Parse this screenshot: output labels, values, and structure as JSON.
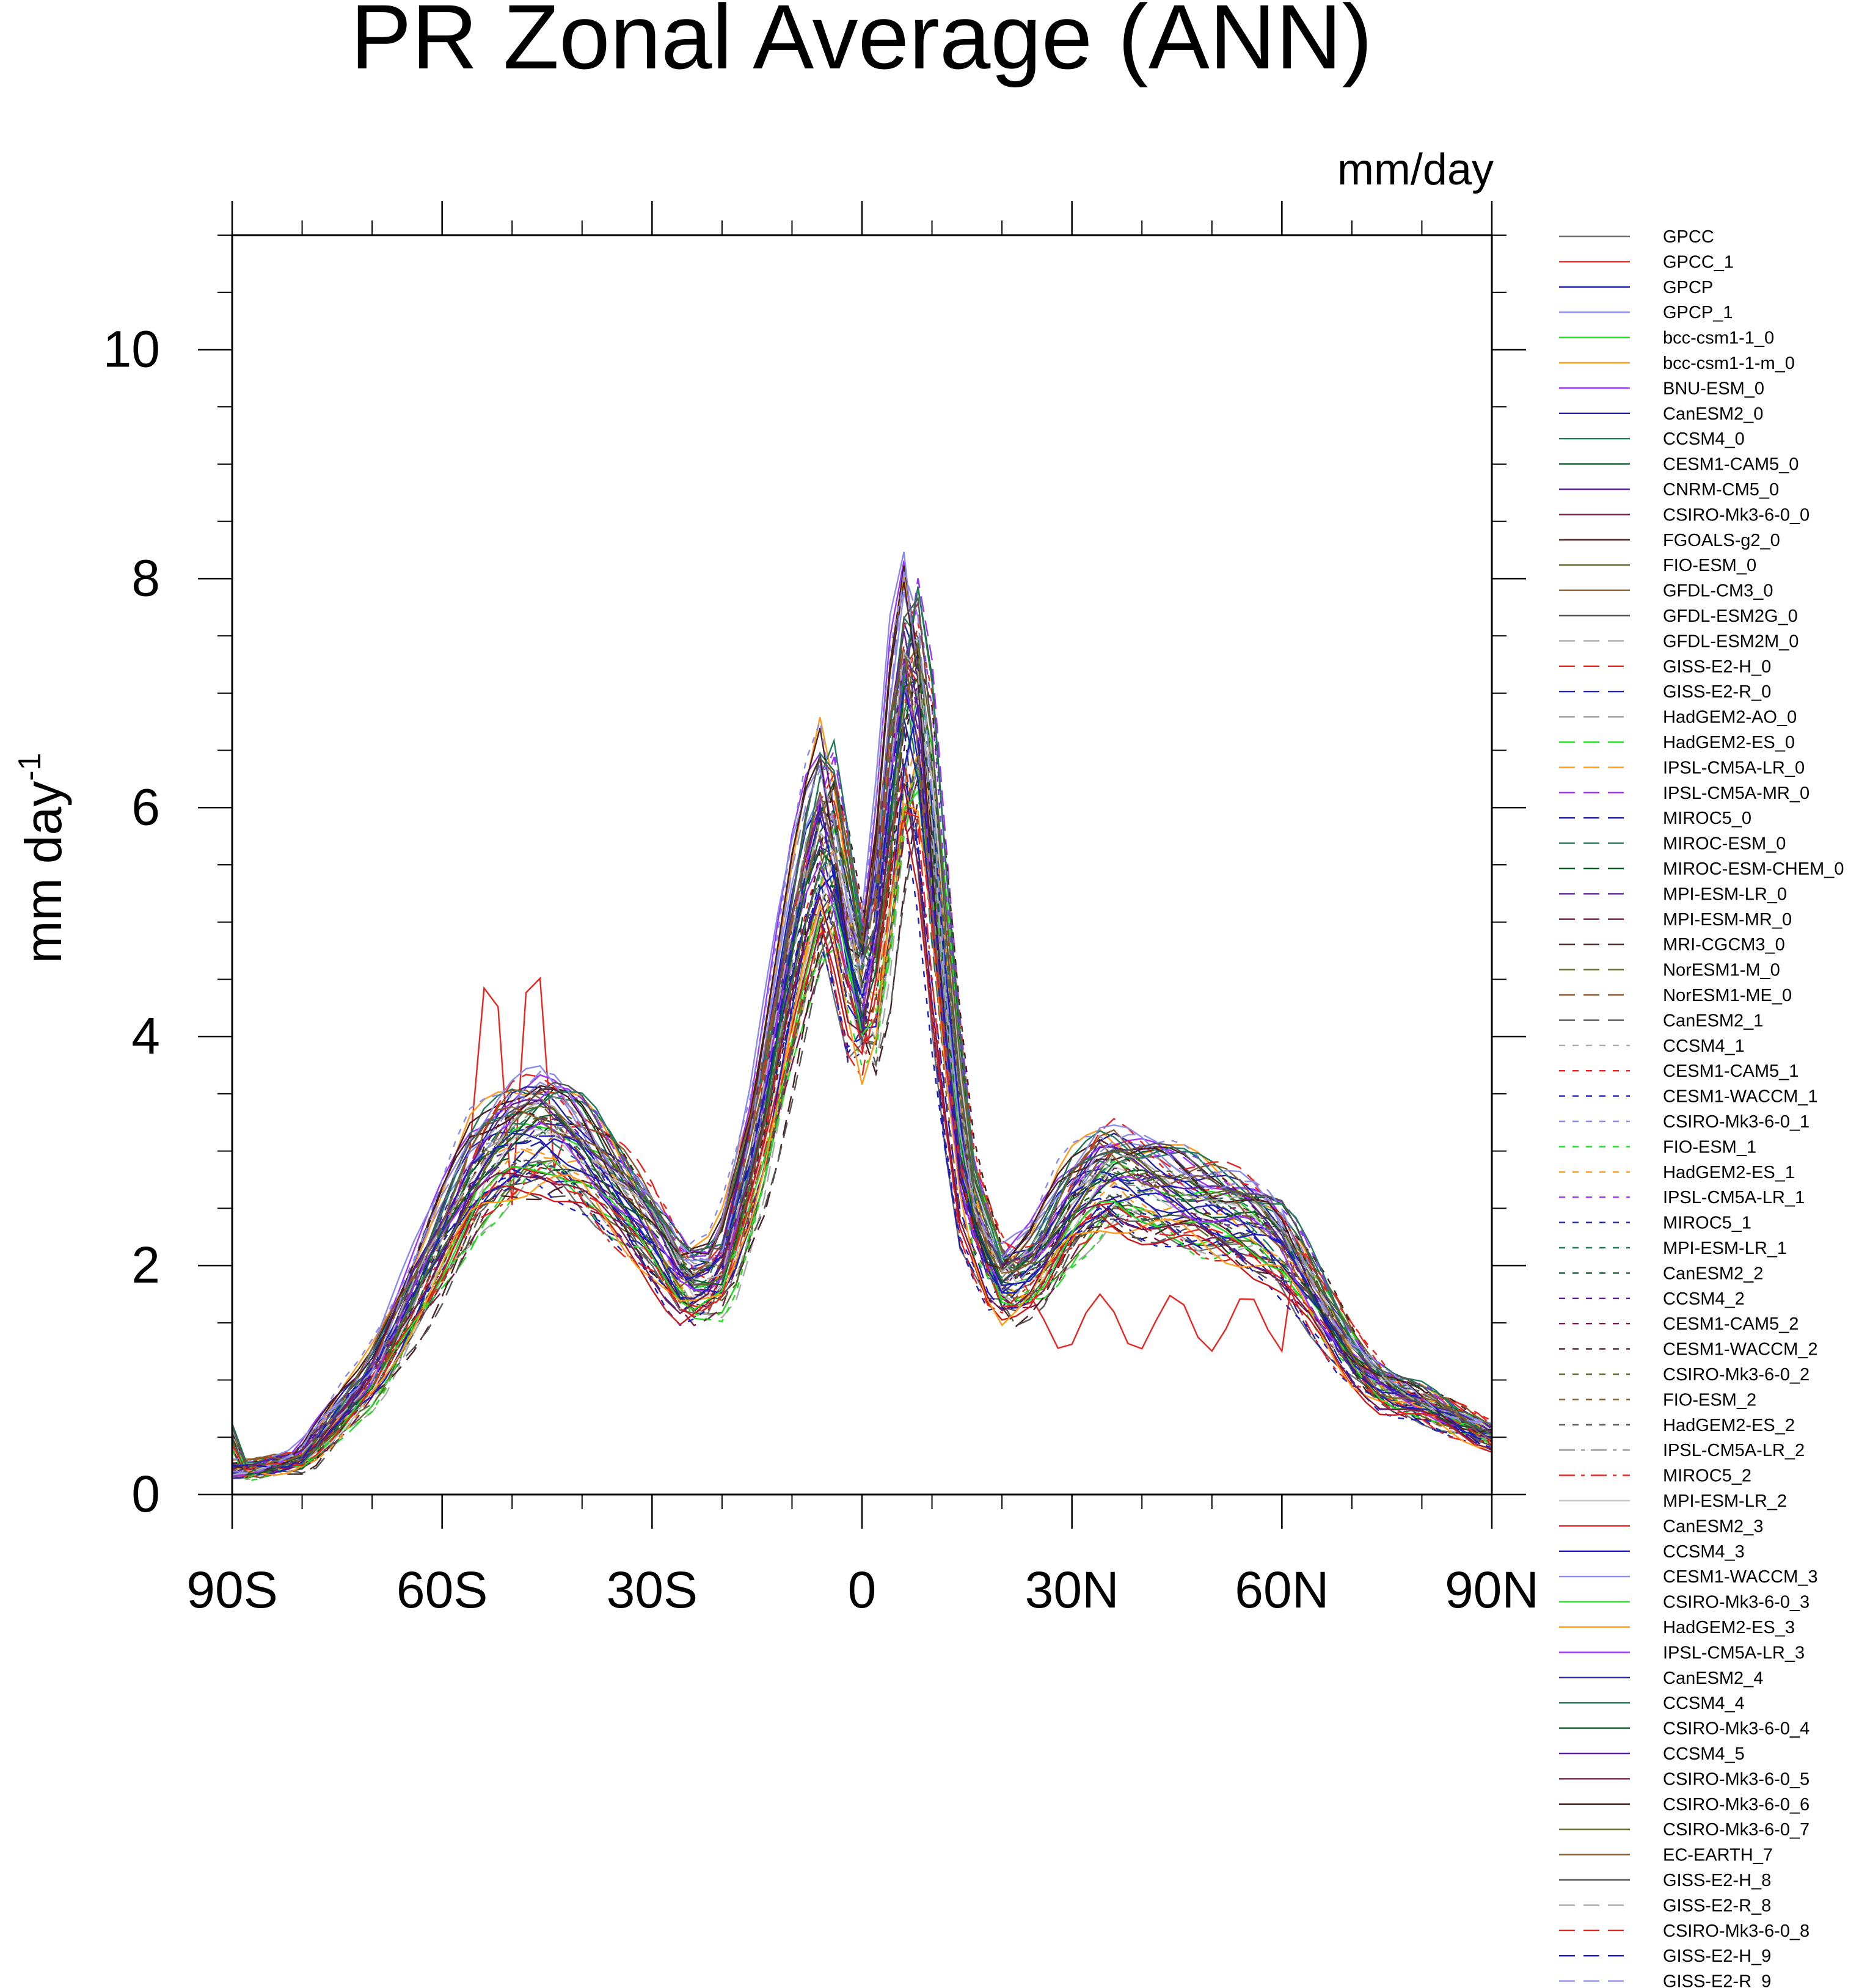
{
  "chart_data": {
    "type": "line",
    "title": "PR Zonal Average (ANN)",
    "units_label": "mm/day",
    "ylabel": "mm day",
    "ylabel_superscript": "-1",
    "xlabel": "",
    "xlim": [
      -90,
      90
    ],
    "ylim": [
      0,
      11
    ],
    "x_ticks": [
      {
        "value": -90,
        "label": "90S"
      },
      {
        "value": -60,
        "label": "60S"
      },
      {
        "value": -30,
        "label": "30S"
      },
      {
        "value": 0,
        "label": "0"
      },
      {
        "value": 30,
        "label": "30N"
      },
      {
        "value": 60,
        "label": "60N"
      },
      {
        "value": 90,
        "label": "90N"
      }
    ],
    "y_ticks": [
      {
        "value": 0,
        "label": "0"
      },
      {
        "value": 2,
        "label": "2"
      },
      {
        "value": 4,
        "label": "4"
      },
      {
        "value": 6,
        "label": "6"
      },
      {
        "value": 8,
        "label": "8"
      },
      {
        "value": 10,
        "label": "10"
      }
    ],
    "anchor_lat": [
      -90,
      -80,
      -70,
      -60,
      -55,
      -50,
      -45,
      -40,
      -30,
      -25,
      -20,
      -15,
      -10,
      -8,
      -5,
      -2,
      0,
      2,
      5,
      7,
      9,
      12,
      15,
      20,
      25,
      30,
      35,
      40,
      45,
      50,
      55,
      60,
      65,
      70,
      75,
      80,
      90
    ],
    "base_profile": [
      0.2,
      0.3,
      1.0,
      2.2,
      2.8,
      3.1,
      3.2,
      3.0,
      2.3,
      1.8,
      1.9,
      3.0,
      4.6,
      5.2,
      5.8,
      4.9,
      4.2,
      4.6,
      6.5,
      7.2,
      6.4,
      4.2,
      2.6,
      1.8,
      2.0,
      2.5,
      2.8,
      2.7,
      2.6,
      2.5,
      2.4,
      2.2,
      1.7,
      1.2,
      0.9,
      0.8,
      0.5
    ],
    "series": [
      {
        "name": "GPCC",
        "color": "#6e6e6e",
        "dash": "solid"
      },
      {
        "name": "GPCC_1",
        "color": "#e8241f",
        "dash": "solid"
      },
      {
        "name": "GPCP",
        "color": "#1c1cc4",
        "dash": "solid"
      },
      {
        "name": "GPCP_1",
        "color": "#8a8ae8",
        "dash": "solid"
      },
      {
        "name": "bcc-csm1-1_0",
        "color": "#22dd22",
        "dash": "solid"
      },
      {
        "name": "bcc-csm1-1-m_0",
        "color": "#ff9a1a",
        "dash": "solid"
      },
      {
        "name": "BNU-ESM_0",
        "color": "#9b30ff",
        "dash": "solid"
      },
      {
        "name": "CanESM2_0",
        "color": "#2323a8",
        "dash": "solid"
      },
      {
        "name": "CCSM4_0",
        "color": "#1f7a58",
        "dash": "solid"
      },
      {
        "name": "CESM1-CAM5_0",
        "color": "#0f5a2a",
        "dash": "solid"
      },
      {
        "name": "CNRM-CM5_0",
        "color": "#5b1f9e",
        "dash": "solid"
      },
      {
        "name": "CSIRO-Mk3-6-0_0",
        "color": "#7a1a4a",
        "dash": "solid"
      },
      {
        "name": "FGOALS-g2_0",
        "color": "#4a1f1f",
        "dash": "solid"
      },
      {
        "name": "FIO-ESM_0",
        "color": "#5a6a2a",
        "dash": "solid"
      },
      {
        "name": "GFDL-CM3_0",
        "color": "#8a5a2a",
        "dash": "solid"
      },
      {
        "name": "GFDL-ESM2G_0",
        "color": "#555555",
        "dash": "solid"
      },
      {
        "name": "GFDL-ESM2M_0",
        "color": "#aaaaaa",
        "dash": "long"
      },
      {
        "name": "GISS-E2-H_0",
        "color": "#e8241f",
        "dash": "long"
      },
      {
        "name": "GISS-E2-R_0",
        "color": "#1c1cc4",
        "dash": "long"
      },
      {
        "name": "HadGEM2-AO_0",
        "color": "#9a9a9a",
        "dash": "long"
      },
      {
        "name": "HadGEM2-ES_0",
        "color": "#22dd22",
        "dash": "long"
      },
      {
        "name": "IPSL-CM5A-LR_0",
        "color": "#ff9a1a",
        "dash": "long"
      },
      {
        "name": "IPSL-CM5A-MR_0",
        "color": "#9b30ff",
        "dash": "long"
      },
      {
        "name": "MIROC5_0",
        "color": "#2323a8",
        "dash": "long"
      },
      {
        "name": "MIROC-ESM_0",
        "color": "#1f7a58",
        "dash": "long"
      },
      {
        "name": "MIROC-ESM-CHEM_0",
        "color": "#0f5a2a",
        "dash": "long"
      },
      {
        "name": "MPI-ESM-LR_0",
        "color": "#5b1f9e",
        "dash": "long"
      },
      {
        "name": "MPI-ESM-MR_0",
        "color": "#7a1a4a",
        "dash": "long"
      },
      {
        "name": "MRI-CGCM3_0",
        "color": "#4a1f1f",
        "dash": "long"
      },
      {
        "name": "NorESM1-M_0",
        "color": "#5a6a2a",
        "dash": "long"
      },
      {
        "name": "NorESM1-ME_0",
        "color": "#8a5a2a",
        "dash": "long"
      },
      {
        "name": "CanESM2_1",
        "color": "#555555",
        "dash": "long"
      },
      {
        "name": "CCSM4_1",
        "color": "#aaaaaa",
        "dash": "short"
      },
      {
        "name": "CESM1-CAM5_1",
        "color": "#e8241f",
        "dash": "short"
      },
      {
        "name": "CESM1-WACCM_1",
        "color": "#1c1cc4",
        "dash": "short"
      },
      {
        "name": "CSIRO-Mk3-6-0_1",
        "color": "#8a8ae8",
        "dash": "short"
      },
      {
        "name": "FIO-ESM_1",
        "color": "#22dd22",
        "dash": "short"
      },
      {
        "name": "HadGEM2-ES_1",
        "color": "#ff9a1a",
        "dash": "short"
      },
      {
        "name": "IPSL-CM5A-LR_1",
        "color": "#9b30ff",
        "dash": "short"
      },
      {
        "name": "MIROC5_1",
        "color": "#2323a8",
        "dash": "short"
      },
      {
        "name": "MPI-ESM-LR_1",
        "color": "#1f7a58",
        "dash": "short"
      },
      {
        "name": "CanESM2_2",
        "color": "#0f5a2a",
        "dash": "short"
      },
      {
        "name": "CCSM4_2",
        "color": "#5b1f9e",
        "dash": "short"
      },
      {
        "name": "CESM1-CAM5_2",
        "color": "#7a1a4a",
        "dash": "short"
      },
      {
        "name": "CESM1-WACCM_2",
        "color": "#4a1f1f",
        "dash": "short"
      },
      {
        "name": "CSIRO-Mk3-6-0_2",
        "color": "#5a6a2a",
        "dash": "short"
      },
      {
        "name": "FIO-ESM_2",
        "color": "#8a5a2a",
        "dash": "short"
      },
      {
        "name": "HadGEM2-ES_2",
        "color": "#555555",
        "dash": "short"
      },
      {
        "name": "IPSL-CM5A-LR_2",
        "color": "#999999",
        "dash": "dashdot"
      },
      {
        "name": "MIROC5_2",
        "color": "#e8241f",
        "dash": "dashdot"
      },
      {
        "name": "MPI-ESM-LR_2",
        "color": "#c8c8c8",
        "dash": "solid"
      },
      {
        "name": "CanESM2_3",
        "color": "#cc1a1a",
        "dash": "solid"
      },
      {
        "name": "CCSM4_3",
        "color": "#1c1cc4",
        "dash": "solid"
      },
      {
        "name": "CESM1-WACCM_3",
        "color": "#8a8ae8",
        "dash": "solid"
      },
      {
        "name": "CSIRO-Mk3-6-0_3",
        "color": "#22dd22",
        "dash": "solid"
      },
      {
        "name": "HadGEM2-ES_3",
        "color": "#ff9a1a",
        "dash": "solid"
      },
      {
        "name": "IPSL-CM5A-LR_3",
        "color": "#9b30ff",
        "dash": "solid"
      },
      {
        "name": "CanESM2_4",
        "color": "#2323a8",
        "dash": "solid"
      },
      {
        "name": "CCSM4_4",
        "color": "#1f7a58",
        "dash": "solid"
      },
      {
        "name": "CSIRO-Mk3-6-0_4",
        "color": "#0f5a2a",
        "dash": "solid"
      },
      {
        "name": "CCSM4_5",
        "color": "#5b1f9e",
        "dash": "solid"
      },
      {
        "name": "CSIRO-Mk3-6-0_5",
        "color": "#7a1a4a",
        "dash": "solid"
      },
      {
        "name": "CSIRO-Mk3-6-0_6",
        "color": "#4a1f1f",
        "dash": "solid"
      },
      {
        "name": "CSIRO-Mk3-6-0_7",
        "color": "#5a6a2a",
        "dash": "solid"
      },
      {
        "name": "EC-EARTH_7",
        "color": "#8a5a2a",
        "dash": "solid"
      },
      {
        "name": "GISS-E2-H_8",
        "color": "#555555",
        "dash": "solid"
      },
      {
        "name": "GISS-E2-R_8",
        "color": "#aaaaaa",
        "dash": "long"
      },
      {
        "name": "CSIRO-Mk3-6-0_8",
        "color": "#e8241f",
        "dash": "long"
      },
      {
        "name": "GISS-E2-H_9",
        "color": "#1c1cc4",
        "dash": "long"
      },
      {
        "name": "GISS-E2-R_9",
        "color": "#8a8ae8",
        "dash": "long"
      }
    ]
  }
}
